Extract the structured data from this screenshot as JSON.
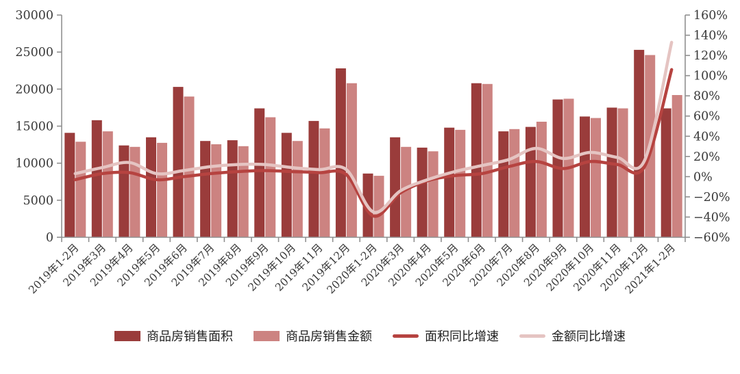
{
  "chart_data": {
    "type": "bar+line combo, dual axis",
    "categories": [
      "2019年1-2月",
      "2019年3月",
      "2019年4月",
      "2019年5月",
      "2019年6月",
      "2019年7月",
      "2019年8月",
      "2019年9月",
      "2019年10月",
      "2019年11月",
      "2019年12月",
      "2020年1-2月",
      "2020年3月",
      "2020年4月",
      "2020年5月",
      "2020年6月",
      "2020年7月",
      "2020年8月",
      "2020年9月",
      "2020年10月",
      "2020年11月",
      "2020年12月",
      "2021年1-2月"
    ],
    "series": [
      {
        "name": "商品房销售面积",
        "type": "bar",
        "axis": "left",
        "color": "#9A3C3B",
        "values": [
          14100,
          15800,
          12400,
          13500,
          20300,
          13000,
          13100,
          17400,
          14100,
          15700,
          22800,
          8600,
          13500,
          12100,
          14800,
          20800,
          14300,
          14900,
          18600,
          16300,
          17500,
          25300,
          17400
        ]
      },
      {
        "name": "商品房销售金额",
        "type": "bar",
        "axis": "left",
        "color": "#CC8381",
        "values": [
          12900,
          14300,
          12200,
          12750,
          19000,
          12550,
          12300,
          16200,
          13000,
          14700,
          20800,
          8300,
          12200,
          11600,
          14500,
          20700,
          14600,
          15600,
          18700,
          16100,
          17400,
          24600,
          19200
        ]
      },
      {
        "name": "面积同比增速",
        "type": "line",
        "axis": "right",
        "color": "#B64340",
        "values": [
          -3,
          3,
          4,
          -3,
          0,
          3,
          5,
          6,
          5,
          4,
          2,
          -39,
          -16,
          -4,
          1,
          3,
          10,
          15,
          8,
          15,
          12,
          10,
          106
        ]
      },
      {
        "name": "金额同比增速",
        "type": "line",
        "axis": "right",
        "color": "#E5C4C2",
        "values": [
          3,
          9,
          14,
          3,
          6,
          10,
          12,
          12,
          9,
          7,
          7,
          -35,
          -14,
          -3,
          5,
          11,
          17,
          28,
          18,
          24,
          19,
          16,
          133
        ]
      }
    ],
    "left_axis": {
      "min": 0,
      "max": 30000,
      "step": 5000,
      "tick_labels": [
        "0",
        "5000",
        "10000",
        "15000",
        "20000",
        "25000",
        "30000"
      ]
    },
    "right_axis": {
      "min": -60,
      "max": 160,
      "step": 20,
      "tick_labels": [
        "−60%",
        "−40%",
        "−20%",
        "0%",
        "20%",
        "40%",
        "60%",
        "80%",
        "100%",
        "120%",
        "140%",
        "160%"
      ]
    },
    "title": "",
    "xlabel": "",
    "ylabel": "",
    "grid": "off",
    "legend_position": "bottom-center"
  },
  "style": {
    "axis_line_color": "#8f8f8f",
    "tick_text_color": "#3a3a3a",
    "background": "#ffffff"
  }
}
